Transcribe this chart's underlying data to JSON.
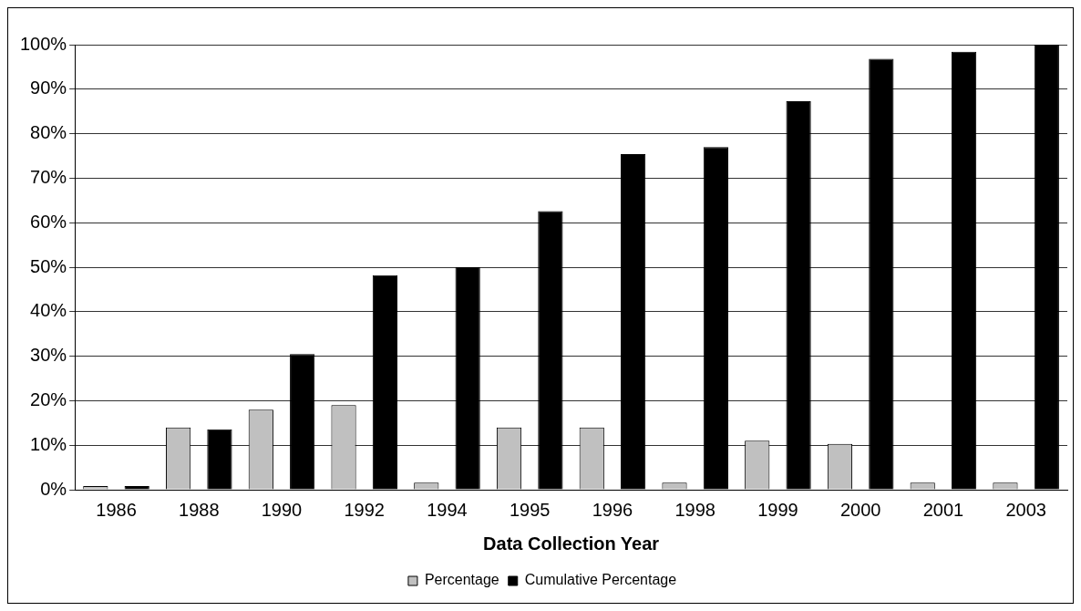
{
  "chart_data": {
    "type": "bar",
    "xlabel": "Data Collection Year",
    "categories": [
      "1986",
      "1988",
      "1990",
      "1992",
      "1994",
      "1995",
      "1996",
      "1998",
      "1999",
      "2000",
      "2001",
      "2003"
    ],
    "series": [
      {
        "name": "Percentage",
        "color": "#c0c0c0",
        "values": [
          0.8,
          14,
          18,
          19,
          1.6,
          14,
          14,
          1.6,
          11,
          10.3,
          1.6,
          1.6
        ]
      },
      {
        "name": "Cumulative Percentage",
        "color": "#000000",
        "values": [
          0.8,
          13.6,
          30.5,
          48.2,
          50,
          62.6,
          75.4,
          77,
          87.3,
          96.8,
          98.4,
          100
        ]
      }
    ],
    "ylim": [
      0,
      100
    ],
    "yticks": [
      {
        "value": 0,
        "label": "0%"
      },
      {
        "value": 10,
        "label": "10%"
      },
      {
        "value": 20,
        "label": "20%"
      },
      {
        "value": 30,
        "label": "30%"
      },
      {
        "value": 40,
        "label": "40%"
      },
      {
        "value": 50,
        "label": "50%"
      },
      {
        "value": 60,
        "label": "60%"
      },
      {
        "value": 70,
        "label": "70%"
      },
      {
        "value": 80,
        "label": "80%"
      },
      {
        "value": 90,
        "label": "90%"
      },
      {
        "value": 100,
        "label": "100%"
      }
    ],
    "grid": "y",
    "legend": "bottom"
  }
}
